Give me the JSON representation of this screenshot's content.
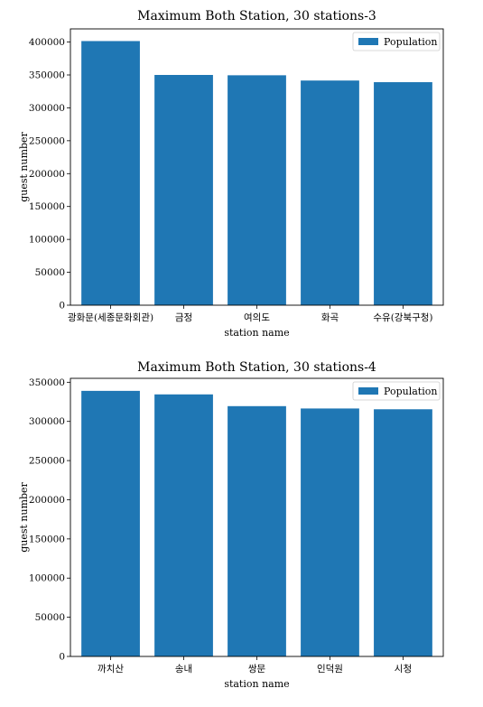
{
  "chart_data": [
    {
      "type": "bar",
      "title": "Maximum Both Station, 30 stations-3",
      "xlabel": "station name",
      "ylabel": "guest number",
      "categories": [
        "광화문(세종문화회관)",
        "금정",
        "여의도",
        "화곡",
        "수유(강북구청)"
      ],
      "series": [
        {
          "name": "Population",
          "values": [
            401500,
            350000,
            349500,
            341500,
            339000
          ]
        }
      ],
      "ylim": [
        0,
        420000
      ],
      "yticks": [
        0,
        50000,
        100000,
        150000,
        200000,
        250000,
        300000,
        350000,
        400000
      ],
      "legend": "top-right",
      "grid": false,
      "bar_color": "#1f77b4"
    },
    {
      "type": "bar",
      "title": "Maximum Both Station, 30 stations-4",
      "xlabel": "station name",
      "ylabel": "guest number",
      "categories": [
        "까치산",
        "송내",
        "쌍문",
        "인덕원",
        "시청"
      ],
      "series": [
        {
          "name": "Population",
          "values": [
            339000,
            334500,
            319500,
            316500,
            315500
          ]
        }
      ],
      "ylim": [
        0,
        355000
      ],
      "yticks": [
        0,
        50000,
        100000,
        150000,
        200000,
        250000,
        300000,
        350000
      ],
      "legend": "top-right",
      "grid": false,
      "bar_color": "#1f77b4"
    }
  ]
}
